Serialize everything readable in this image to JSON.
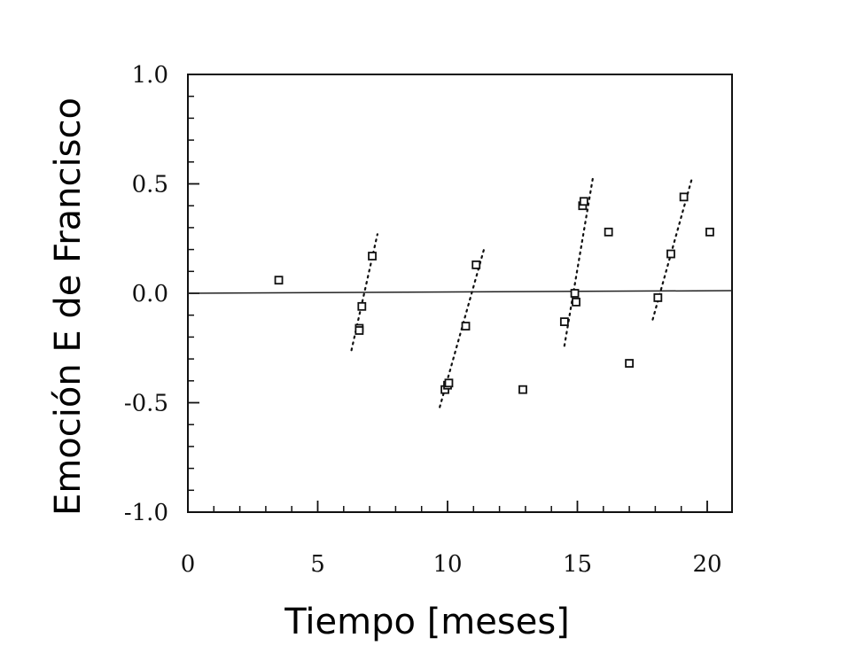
{
  "chart_data": {
    "type": "scatter",
    "xlabel": "Tiempo [meses]",
    "ylabel": "Emoción E de Francisco",
    "xlim": [
      0,
      21
    ],
    "ylim": [
      -1.0,
      1.0
    ],
    "x_ticks": [
      0,
      5,
      10,
      15,
      20
    ],
    "x_tick_labels": [
      "0",
      "5",
      "10",
      "15",
      "20"
    ],
    "y_ticks": [
      1.0,
      0.5,
      0.0,
      -0.5,
      -1.0
    ],
    "y_tick_labels": [
      "1.0",
      "0.5",
      "0.0",
      "-0.5",
      "-1.0"
    ],
    "grid": false,
    "marker": "open-square",
    "series": [
      {
        "points": [
          [
            3.5,
            0.06
          ],
          [
            6.6,
            -0.16
          ],
          [
            6.6,
            -0.17
          ],
          [
            6.7,
            -0.06
          ],
          [
            7.1,
            0.17
          ],
          [
            9.9,
            -0.44
          ],
          [
            10.0,
            -0.42
          ],
          [
            10.05,
            -0.41
          ],
          [
            10.7,
            -0.15
          ],
          [
            11.1,
            0.13
          ],
          [
            12.9,
            -0.44
          ],
          [
            14.5,
            -0.13
          ],
          [
            14.9,
            0.0
          ],
          [
            14.95,
            -0.04
          ],
          [
            15.2,
            0.4
          ],
          [
            15.25,
            0.42
          ],
          [
            16.2,
            0.28
          ],
          [
            17.0,
            -0.32
          ],
          [
            18.1,
            -0.02
          ],
          [
            18.6,
            0.18
          ],
          [
            19.1,
            0.44
          ],
          [
            20.1,
            0.28
          ]
        ]
      }
    ],
    "reference_lines": [
      {
        "type": "horizontal",
        "y": 0.0,
        "style": "solid"
      }
    ],
    "trend_segments": [
      {
        "style": "dotted",
        "from": [
          6.3,
          -0.26
        ],
        "to": [
          7.3,
          0.27
        ]
      },
      {
        "style": "dotted",
        "from": [
          9.7,
          -0.52
        ],
        "to": [
          11.4,
          0.2
        ]
      },
      {
        "style": "dotted",
        "from": [
          14.5,
          -0.24
        ],
        "to": [
          15.6,
          0.53
        ]
      },
      {
        "style": "dotted",
        "from": [
          17.9,
          -0.12
        ],
        "to": [
          19.4,
          0.52
        ]
      }
    ]
  }
}
